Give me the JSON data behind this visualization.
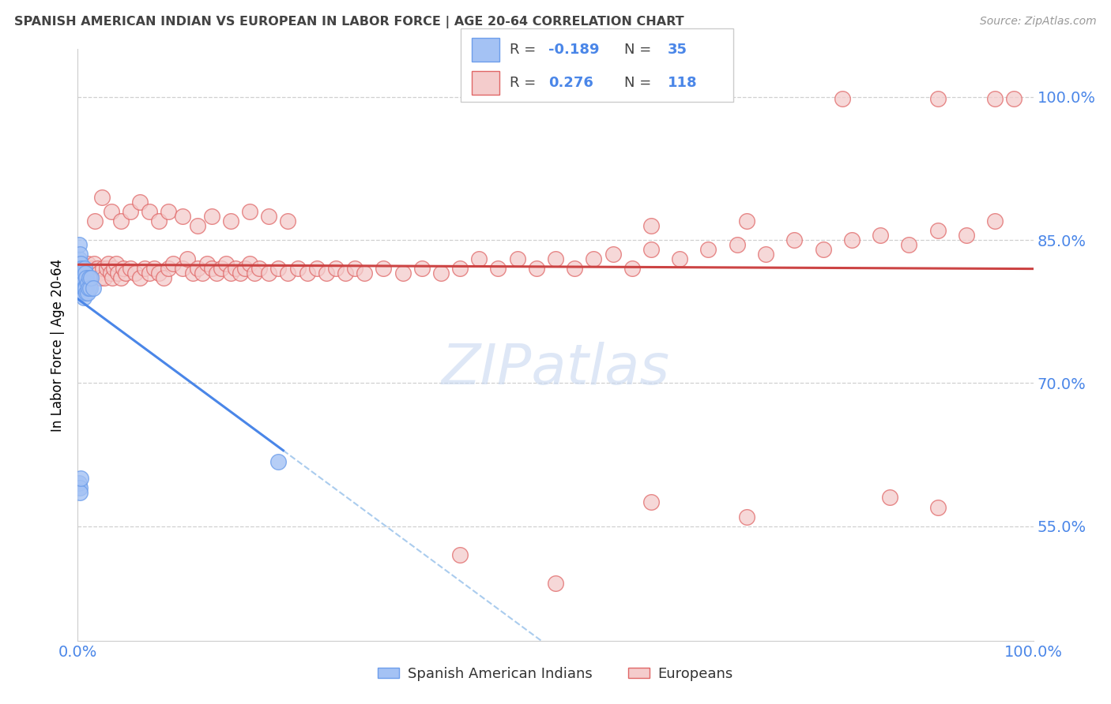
{
  "title": "SPANISH AMERICAN INDIAN VS EUROPEAN IN LABOR FORCE | AGE 20-64 CORRELATION CHART",
  "source": "Source: ZipAtlas.com",
  "ylabel": "In Labor Force | Age 20-64",
  "legend1_label": "Spanish American Indians",
  "legend2_label": "Europeans",
  "R_indian": -0.189,
  "N_indian": 35,
  "R_european": 0.276,
  "N_european": 118,
  "blue_fill": "#a4c2f4",
  "blue_edge": "#6d9eeb",
  "pink_fill": "#f4cccc",
  "pink_edge": "#e06666",
  "blue_line": "#4a86e8",
  "pink_line": "#cc4444",
  "axis_text_color": "#4a86e8",
  "title_color": "#434343",
  "source_color": "#999999",
  "grid_color": "#d0d0d0",
  "watermark_color": "#c8d8f0",
  "xmin": 0.0,
  "xmax": 1.0,
  "ymin": 0.43,
  "ymax": 1.05,
  "yticks": [
    0.55,
    0.7,
    0.85,
    1.0
  ],
  "ytick_labels": [
    "55.0%",
    "70.0%",
    "85.0%",
    "100.0%"
  ],
  "xtick_labels": [
    "0.0%",
    "100.0%"
  ],
  "indian_x": [
    0.001,
    0.001,
    0.002,
    0.002,
    0.002,
    0.003,
    0.003,
    0.003,
    0.004,
    0.004,
    0.004,
    0.005,
    0.005,
    0.005,
    0.006,
    0.006,
    0.006,
    0.007,
    0.007,
    0.008,
    0.008,
    0.009,
    0.009,
    0.01,
    0.01,
    0.011,
    0.012,
    0.013,
    0.014,
    0.016,
    0.001,
    0.002,
    0.002,
    0.21,
    0.003
  ],
  "indian_y": [
    0.83,
    0.845,
    0.835,
    0.82,
    0.81,
    0.825,
    0.815,
    0.805,
    0.82,
    0.81,
    0.8,
    0.815,
    0.805,
    0.795,
    0.815,
    0.8,
    0.79,
    0.82,
    0.8,
    0.815,
    0.8,
    0.81,
    0.795,
    0.805,
    0.795,
    0.8,
    0.81,
    0.8,
    0.81,
    0.8,
    0.595,
    0.59,
    0.585,
    0.618,
    0.6
  ],
  "euro_x": [
    0.003,
    0.005,
    0.007,
    0.008,
    0.01,
    0.012,
    0.014,
    0.015,
    0.017,
    0.018,
    0.02,
    0.022,
    0.024,
    0.026,
    0.028,
    0.03,
    0.032,
    0.034,
    0.036,
    0.038,
    0.04,
    0.042,
    0.045,
    0.048,
    0.05,
    0.055,
    0.06,
    0.065,
    0.07,
    0.075,
    0.08,
    0.085,
    0.09,
    0.095,
    0.1,
    0.11,
    0.115,
    0.12,
    0.125,
    0.13,
    0.135,
    0.14,
    0.145,
    0.15,
    0.155,
    0.16,
    0.165,
    0.17,
    0.175,
    0.18,
    0.185,
    0.19,
    0.2,
    0.21,
    0.22,
    0.23,
    0.24,
    0.25,
    0.26,
    0.27,
    0.28,
    0.29,
    0.3,
    0.32,
    0.34,
    0.36,
    0.38,
    0.4,
    0.42,
    0.44,
    0.46,
    0.48,
    0.5,
    0.52,
    0.54,
    0.56,
    0.58,
    0.6,
    0.63,
    0.66,
    0.69,
    0.72,
    0.75,
    0.78,
    0.81,
    0.84,
    0.87,
    0.9,
    0.93,
    0.96,
    0.6,
    0.7,
    0.85,
    0.9,
    0.018,
    0.025,
    0.035,
    0.045,
    0.055,
    0.065,
    0.075,
    0.085,
    0.095,
    0.11,
    0.125,
    0.14,
    0.16,
    0.18,
    0.2,
    0.22,
    0.4,
    0.5,
    0.6,
    0.7,
    0.8,
    0.9,
    0.96,
    0.98
  ],
  "euro_y": [
    0.82,
    0.825,
    0.815,
    0.81,
    0.825,
    0.815,
    0.82,
    0.81,
    0.825,
    0.815,
    0.82,
    0.815,
    0.81,
    0.82,
    0.81,
    0.82,
    0.825,
    0.815,
    0.81,
    0.82,
    0.825,
    0.815,
    0.81,
    0.82,
    0.815,
    0.82,
    0.815,
    0.81,
    0.82,
    0.815,
    0.82,
    0.815,
    0.81,
    0.82,
    0.825,
    0.82,
    0.83,
    0.815,
    0.82,
    0.815,
    0.825,
    0.82,
    0.815,
    0.82,
    0.825,
    0.815,
    0.82,
    0.815,
    0.82,
    0.825,
    0.815,
    0.82,
    0.815,
    0.82,
    0.815,
    0.82,
    0.815,
    0.82,
    0.815,
    0.82,
    0.815,
    0.82,
    0.815,
    0.82,
    0.815,
    0.82,
    0.815,
    0.82,
    0.83,
    0.82,
    0.83,
    0.82,
    0.83,
    0.82,
    0.83,
    0.835,
    0.82,
    0.84,
    0.83,
    0.84,
    0.845,
    0.835,
    0.85,
    0.84,
    0.85,
    0.855,
    0.845,
    0.86,
    0.855,
    0.87,
    0.575,
    0.56,
    0.58,
    0.57,
    0.87,
    0.895,
    0.88,
    0.87,
    0.88,
    0.89,
    0.88,
    0.87,
    0.88,
    0.875,
    0.865,
    0.875,
    0.87,
    0.88,
    0.875,
    0.87,
    0.52,
    0.49,
    0.865,
    0.87,
    0.998,
    0.998,
    0.998,
    0.998
  ]
}
